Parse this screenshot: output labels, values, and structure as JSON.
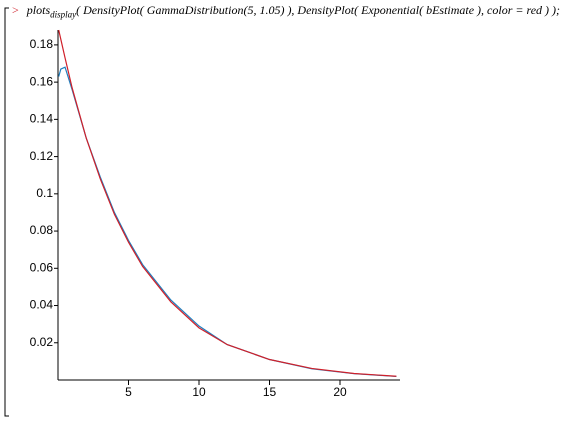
{
  "command": {
    "prompt": ">",
    "function": "plots",
    "subscript": "display",
    "arguments": "( DensityPlot( GammaDistribution(5, 1.05) ), DensityPlot( Exponential( bEstimate ), color = red ) );"
  },
  "chart_data": {
    "type": "line",
    "x": [
      0.05,
      0.2,
      0.5,
      1,
      2,
      3,
      4,
      5,
      6,
      8,
      10,
      12,
      15,
      18,
      21,
      24
    ],
    "series": [
      {
        "name": "GammaDistribution(5, 1.05)",
        "color": "#1f7fbf",
        "values": [
          0.163,
          0.167,
          0.168,
          0.156,
          0.13,
          0.109,
          0.09,
          0.075,
          0.062,
          0.043,
          0.029,
          0.019,
          0.011,
          0.006,
          0.0034,
          0.0019
        ]
      },
      {
        "name": "Exponential(bEstimate)",
        "color": "#d0202a",
        "values": [
          0.188,
          0.183,
          0.173,
          0.157,
          0.13,
          0.108,
          0.089,
          0.074,
          0.061,
          0.042,
          0.028,
          0.019,
          0.011,
          0.0062,
          0.0035,
          0.002
        ]
      }
    ],
    "xlim": [
      0,
      24
    ],
    "ylim": [
      0,
      0.188
    ],
    "xticks": [
      5,
      10,
      15,
      20
    ],
    "yticks": [
      0.02,
      0.04,
      0.06,
      0.08,
      0.1,
      0.12,
      0.14,
      0.16,
      0.18
    ]
  }
}
